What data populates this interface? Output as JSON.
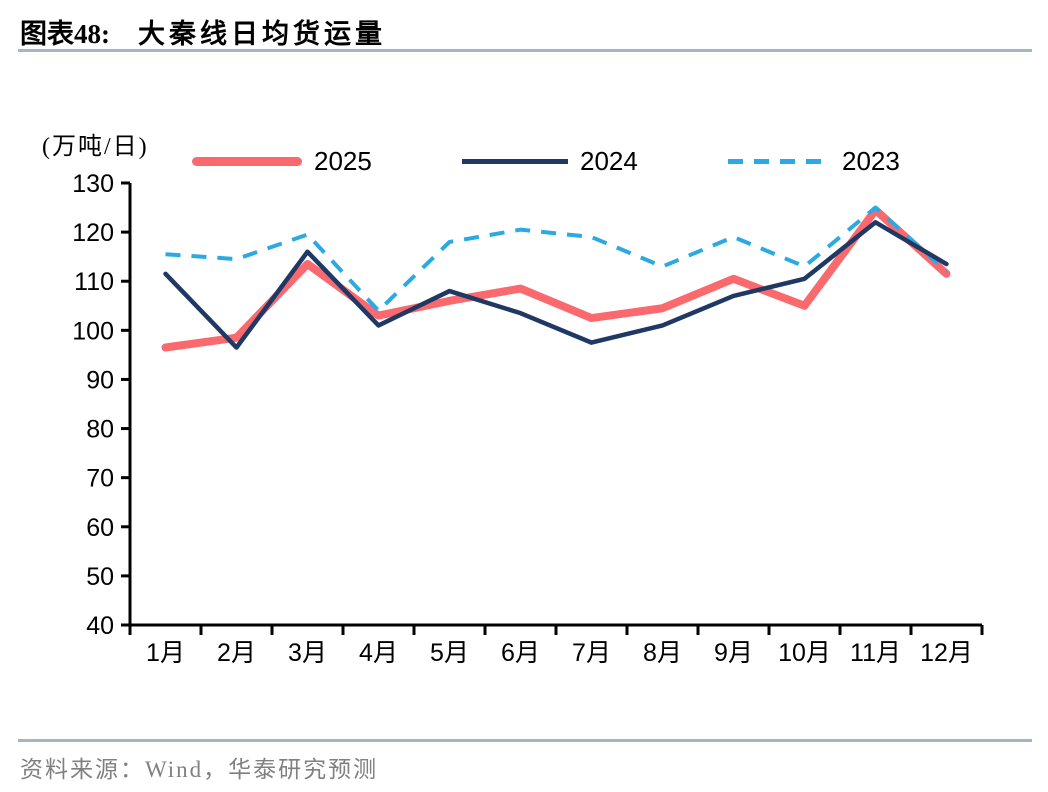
{
  "header": {
    "figure_label": "图表48:",
    "title": "大秦线日均货运量"
  },
  "chart": {
    "unit_label": "(万吨/日)"
  },
  "chart_data": {
    "type": "line",
    "title": "大秦线日均货运量",
    "unit": "万吨/日",
    "categories": [
      "1月",
      "2月",
      "3月",
      "4月",
      "5月",
      "6月",
      "7月",
      "8月",
      "9月",
      "10月",
      "11月",
      "12月"
    ],
    "series": [
      {
        "name": "2025",
        "color": "#f9696d",
        "style": "solid-thick",
        "values": [
          96.5,
          98.5,
          113.5,
          103,
          106,
          108.5,
          102.5,
          104.5,
          110.5,
          105,
          124.5,
          111.5
        ]
      },
      {
        "name": "2024",
        "color": "#1f3864",
        "style": "solid",
        "values": [
          111.5,
          96.5,
          116,
          101,
          108,
          103.5,
          97.5,
          101,
          107,
          110.5,
          122,
          113.5
        ]
      },
      {
        "name": "2023",
        "color": "#2ba9e2",
        "style": "dashed",
        "values": [
          115.5,
          114.5,
          119.5,
          104,
          118,
          120.5,
          119,
          113,
          119,
          113,
          125,
          112
        ]
      }
    ],
    "draw_order": [
      "2025",
      "2023",
      "2024"
    ],
    "ylim": [
      40,
      130
    ],
    "ytick_step": 10,
    "legend_position": "top",
    "grid": false
  },
  "footer": {
    "source": "资料来源：Wind，华泰研究预测"
  },
  "colors": {
    "axis": "#000000",
    "rule": "#a3b6c8",
    "footer_text": "#808080"
  }
}
